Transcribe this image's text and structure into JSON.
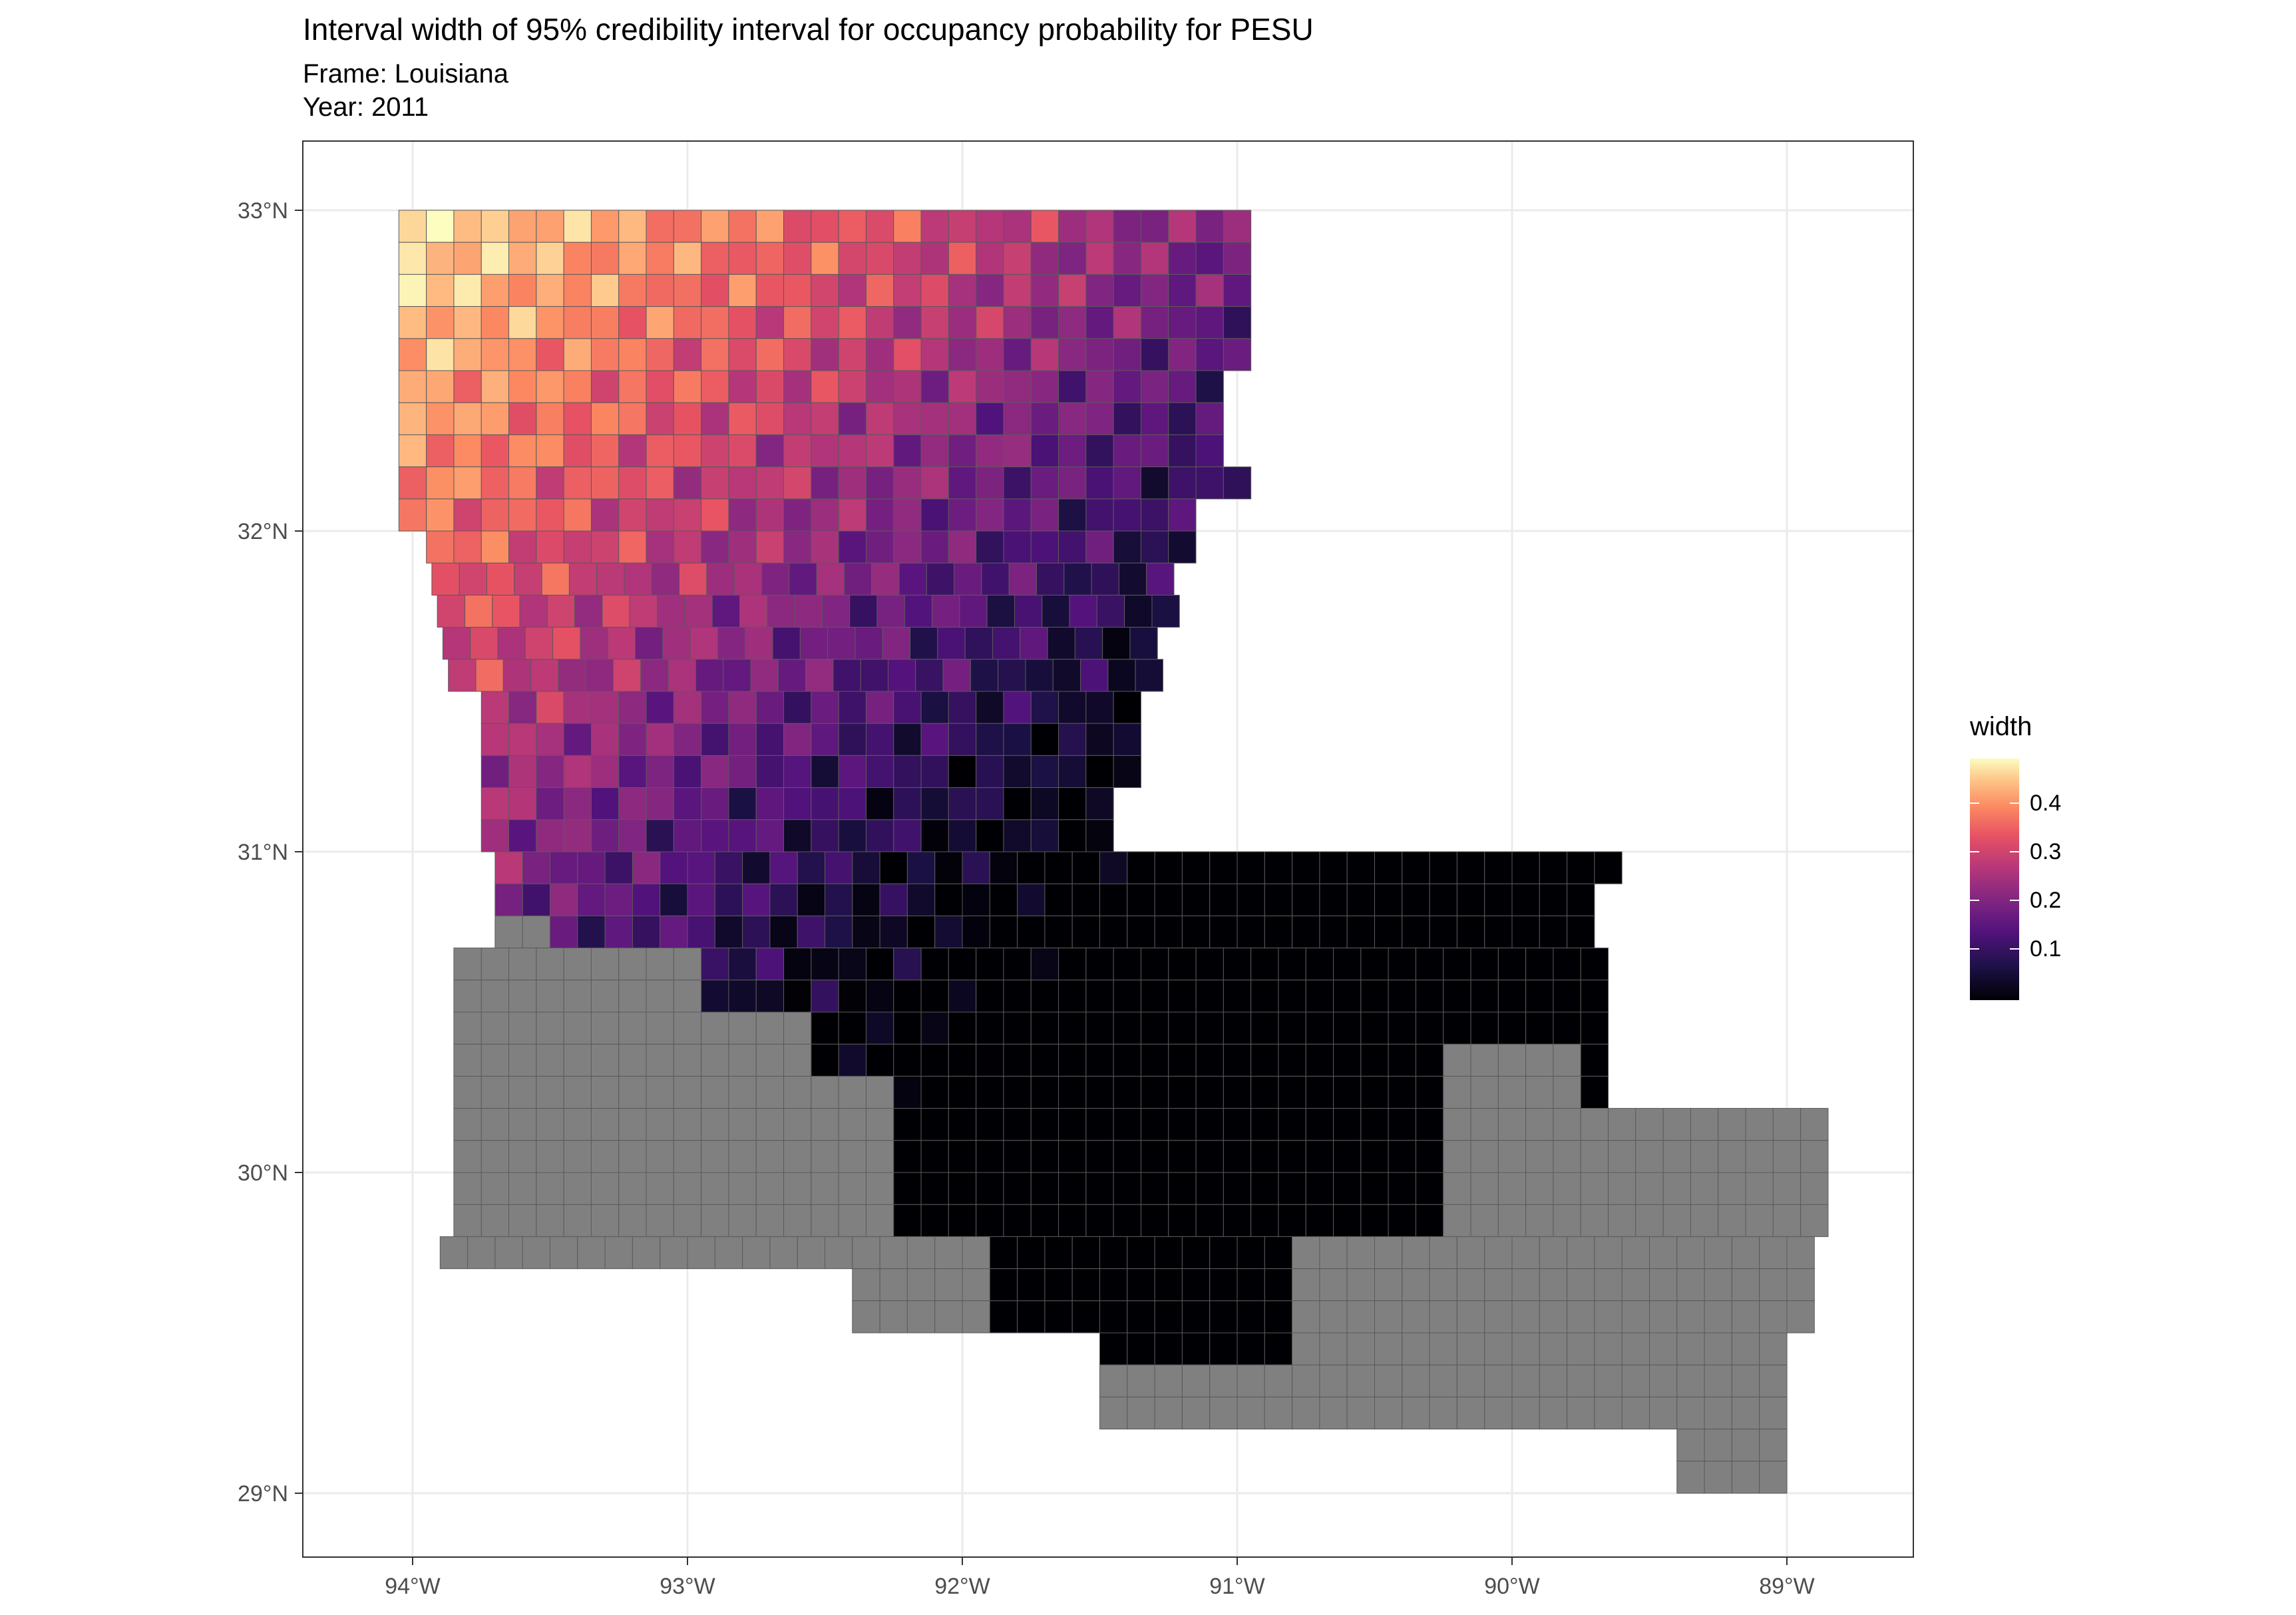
{
  "title": "Interval width of 95% credibility interval for occupancy probability for PESU",
  "subtitle_frame": "Frame: Louisiana",
  "subtitle_year": "Year: 2011",
  "axes": {
    "x_ticks": [
      "94°W",
      "93°W",
      "92°W",
      "91°W",
      "90°W",
      "89°W"
    ],
    "y_ticks": [
      "33°N",
      "32°N",
      "31°N",
      "30°N",
      "29°N"
    ]
  },
  "legend": {
    "title": "width",
    "labels": [
      "0.4",
      "0.3",
      "0.2",
      "0.1"
    ],
    "colormap": "magma",
    "color_low": "#000004",
    "color_high": "#fcfdbf",
    "missing_color": "#808080"
  },
  "chart_data": {
    "type": "heatmap",
    "projection": "longitude-latitude grid",
    "xlim": [
      -94.4,
      -88.5
    ],
    "ylim": [
      28.7,
      33.2
    ],
    "value_range": [
      0.0,
      0.5
    ],
    "value_label": "width",
    "grid_cells": "~0.1° x 0.1° cells covering Louisiana; values decrease from ~0.45 in the northwest to ~0.0 in the southeast; southern coastal cells have no data (grey)"
  }
}
